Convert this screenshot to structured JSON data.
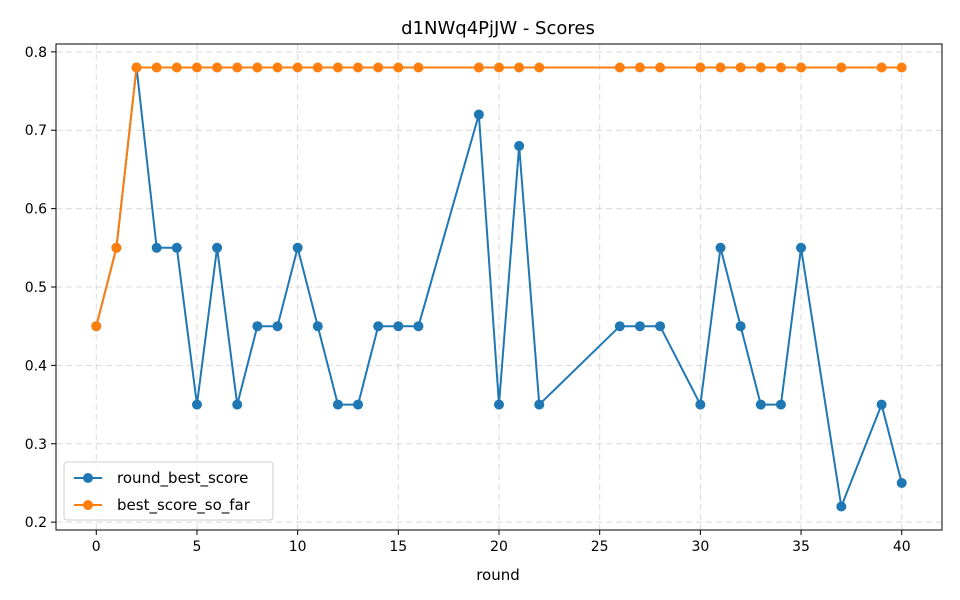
{
  "chart_data": {
    "type": "line",
    "title": "d1NWq4PjJW - Scores",
    "xlabel": "round",
    "ylabel": "",
    "xlim": [
      -2,
      42
    ],
    "ylim": [
      0.19,
      0.81
    ],
    "xticks": [
      0,
      5,
      10,
      15,
      20,
      25,
      30,
      35,
      40
    ],
    "yticks": [
      0.2,
      0.3,
      0.4,
      0.5,
      0.6,
      0.7,
      0.8
    ],
    "grid": true,
    "legend_position": "lower-left",
    "x": [
      0,
      1,
      2,
      3,
      4,
      5,
      6,
      7,
      8,
      9,
      10,
      11,
      12,
      13,
      14,
      15,
      16,
      19,
      20,
      21,
      22,
      26,
      27,
      28,
      30,
      31,
      32,
      33,
      34,
      35,
      37,
      39,
      40
    ],
    "series": [
      {
        "name": "round_best_score",
        "color": "#1f77b4",
        "values": [
          0.45,
          0.55,
          0.78,
          0.55,
          0.55,
          0.35,
          0.55,
          0.35,
          0.45,
          0.45,
          0.55,
          0.45,
          0.35,
          0.35,
          0.45,
          0.45,
          0.45,
          0.72,
          0.35,
          0.68,
          0.35,
          0.45,
          0.45,
          0.45,
          0.35,
          0.55,
          0.45,
          0.35,
          0.35,
          0.55,
          0.22,
          0.35,
          0.25
        ]
      },
      {
        "name": "best_score_so_far",
        "color": "#ff7f0e",
        "values": [
          0.45,
          0.55,
          0.78,
          0.78,
          0.78,
          0.78,
          0.78,
          0.78,
          0.78,
          0.78,
          0.78,
          0.78,
          0.78,
          0.78,
          0.78,
          0.78,
          0.78,
          0.78,
          0.78,
          0.78,
          0.78,
          0.78,
          0.78,
          0.78,
          0.78,
          0.78,
          0.78,
          0.78,
          0.78,
          0.78,
          0.78,
          0.78,
          0.78
        ]
      }
    ]
  }
}
